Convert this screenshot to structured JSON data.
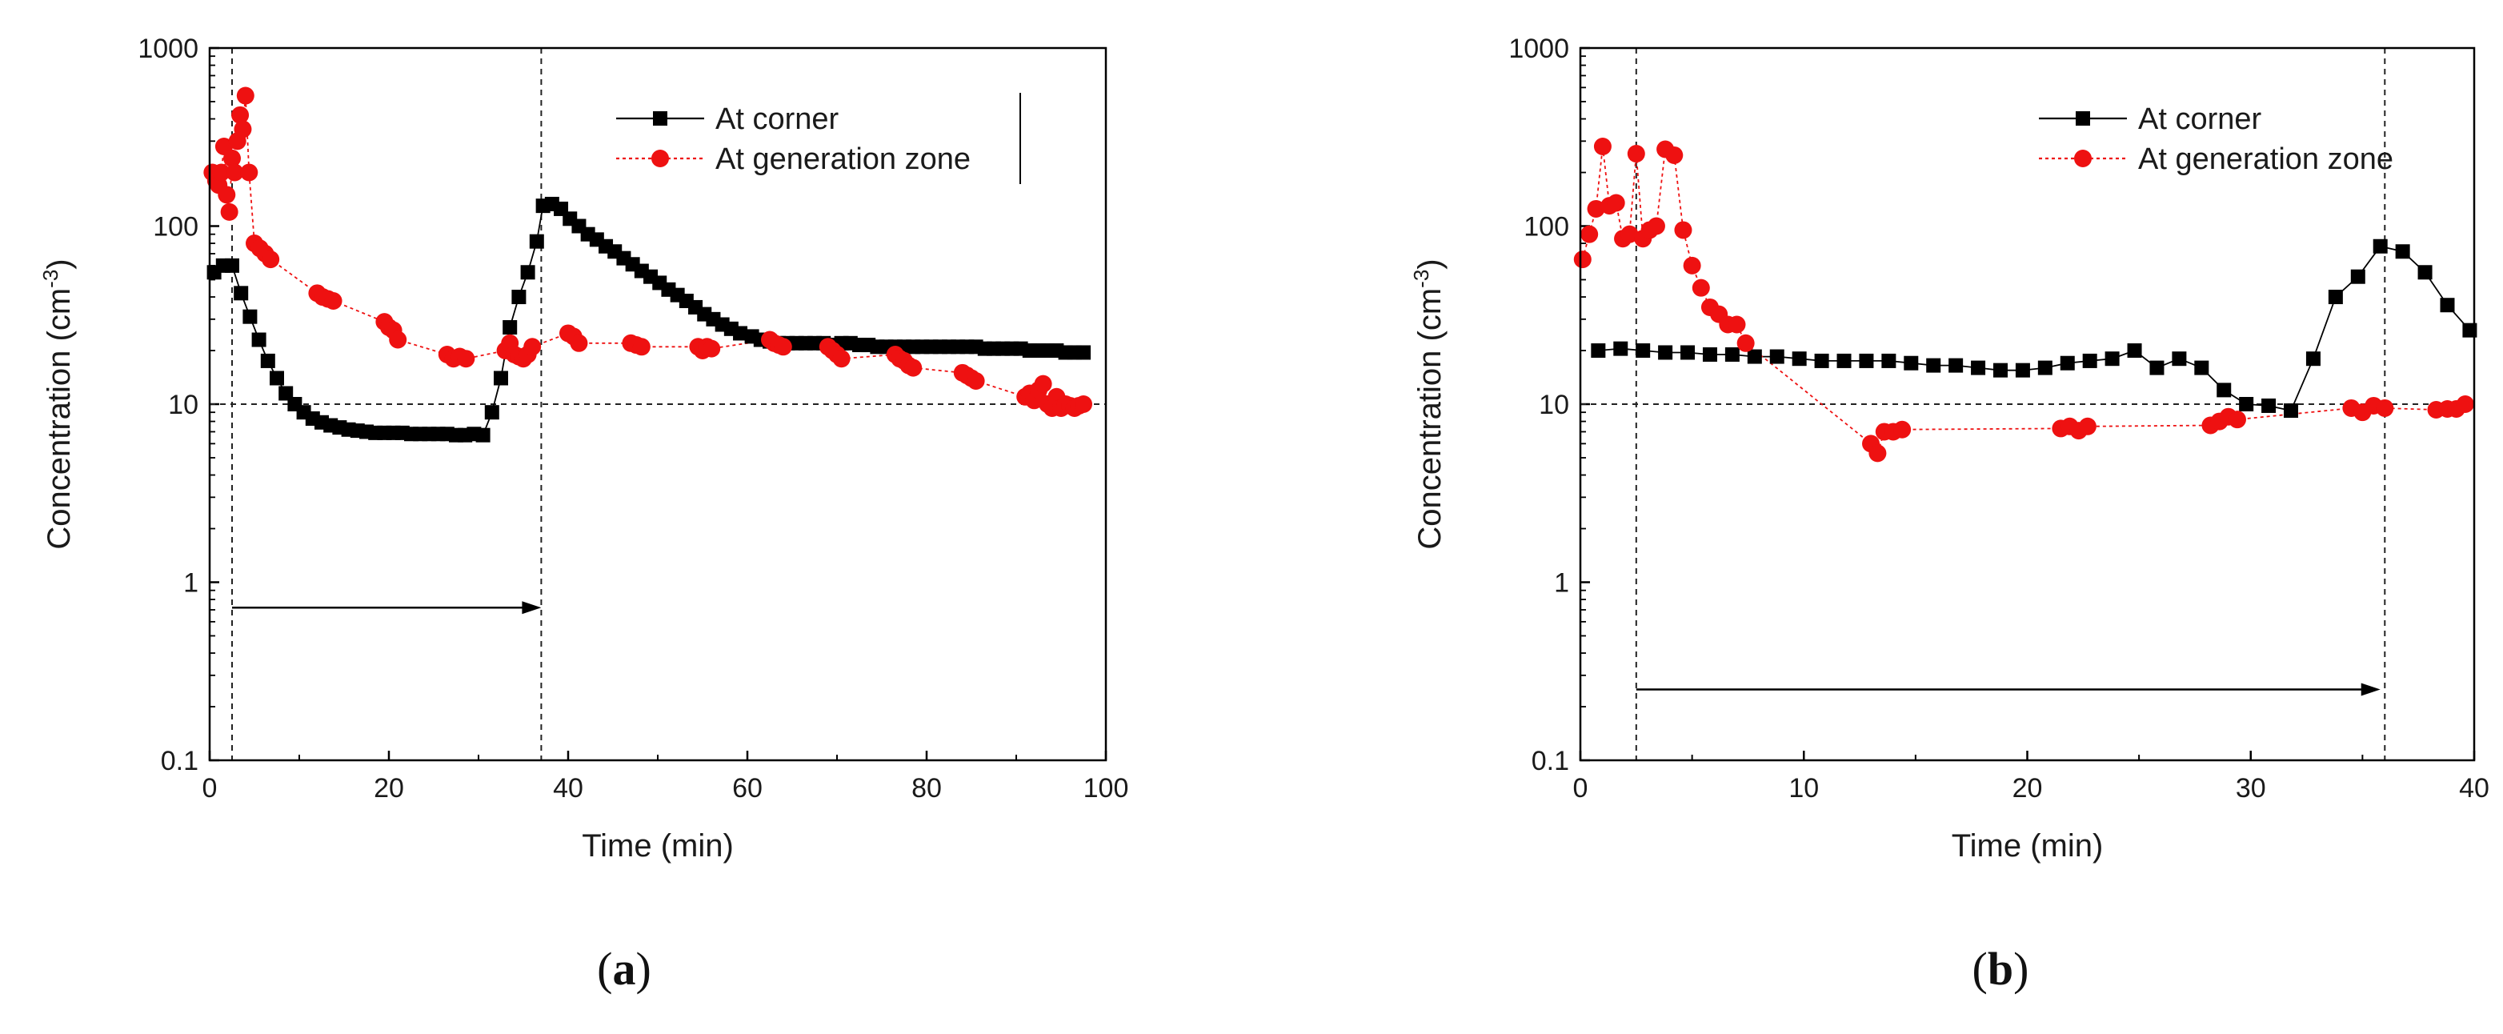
{
  "chart_data": [
    {
      "type": "scatter",
      "panel_label": {
        "open": "(",
        "letter": "a",
        "close": ")"
      },
      "xlabel": "Time (min)",
      "ylabel": "Concentration (cm",
      "ylabel_sup": "-3",
      "ylabel_close": ")",
      "y_scale": "log",
      "xlim": [
        0,
        100
      ],
      "ylim": [
        0.1,
        1000
      ],
      "x_ticks": [
        0,
        20,
        40,
        60,
        80,
        100
      ],
      "x_tick_labels": [
        "0",
        "20",
        "40",
        "60",
        "80",
        "100"
      ],
      "y_ticks": [
        0.1,
        1,
        10,
        100,
        1000
      ],
      "y_tick_labels": [
        "0.1",
        "1",
        "10",
        "100",
        "1000"
      ],
      "hline": 10,
      "vlines": [
        2.5,
        37
      ],
      "arrow": {
        "x_start": 2.5,
        "x_end": 37,
        "y": 0.72
      },
      "legend_position": "top-right",
      "series": [
        {
          "name": "At corner",
          "color": "#000000",
          "marker": "square",
          "points": [
            [
              0.5,
              55
            ],
            [
              1.5,
              60
            ],
            [
              2.5,
              60
            ],
            [
              3.5,
              42
            ],
            [
              4.5,
              31
            ],
            [
              5.5,
              23
            ],
            [
              6.5,
              17.5
            ],
            [
              7.5,
              14
            ],
            [
              8.5,
              11.5
            ],
            [
              9.5,
              10
            ],
            [
              10.5,
              9
            ],
            [
              11.5,
              8.3
            ],
            [
              12.5,
              7.9
            ],
            [
              13.5,
              7.6
            ],
            [
              14.5,
              7.4
            ],
            [
              15.5,
              7.2
            ],
            [
              16.5,
              7.1
            ],
            [
              17.5,
              7
            ],
            [
              18.5,
              6.9
            ],
            [
              19.5,
              6.9
            ],
            [
              20.5,
              6.9
            ],
            [
              21.5,
              6.9
            ],
            [
              22.5,
              6.8
            ],
            [
              23.5,
              6.8
            ],
            [
              24.5,
              6.8
            ],
            [
              25.5,
              6.8
            ],
            [
              26.5,
              6.8
            ],
            [
              27.5,
              6.7
            ],
            [
              28.5,
              6.7
            ],
            [
              29.5,
              6.8
            ],
            [
              30.5,
              6.7
            ],
            [
              31.5,
              9
            ],
            [
              32.5,
              14
            ],
            [
              33.5,
              27
            ],
            [
              34.5,
              40
            ],
            [
              35.5,
              55
            ],
            [
              36.5,
              82
            ],
            [
              37.2,
              130
            ],
            [
              38.2,
              133
            ],
            [
              39.2,
              125
            ],
            [
              40.2,
              110
            ],
            [
              41.2,
              100
            ],
            [
              42.2,
              90
            ],
            [
              43.2,
              84
            ],
            [
              44.2,
              77
            ],
            [
              45.2,
              72
            ],
            [
              46.2,
              66
            ],
            [
              47.2,
              61
            ],
            [
              48.2,
              56
            ],
            [
              49.2,
              52
            ],
            [
              50.2,
              48
            ],
            [
              51.2,
              44
            ],
            [
              52.2,
              41
            ],
            [
              53.2,
              38
            ],
            [
              54.2,
              35
            ],
            [
              55.2,
              32
            ],
            [
              56.2,
              30
            ],
            [
              57.2,
              28
            ],
            [
              58.2,
              26.5
            ],
            [
              59.2,
              25
            ],
            [
              60.5,
              24
            ],
            [
              61.5,
              23
            ],
            [
              62.5,
              22.5
            ],
            [
              63.5,
              22
            ],
            [
              64.5,
              22
            ],
            [
              65.5,
              22
            ],
            [
              66.5,
              22
            ],
            [
              67.5,
              22
            ],
            [
              68.5,
              22
            ],
            [
              69.5,
              21.5
            ],
            [
              70.5,
              22
            ],
            [
              71.5,
              22
            ],
            [
              72.5,
              21.5
            ],
            [
              73.5,
              21.5
            ],
            [
              74.5,
              21
            ],
            [
              75.5,
              21
            ],
            [
              76.5,
              21
            ],
            [
              77.5,
              21
            ],
            [
              78.5,
              21
            ],
            [
              79.5,
              21
            ],
            [
              80.5,
              21
            ],
            [
              81.5,
              21
            ],
            [
              82.5,
              21
            ],
            [
              83.5,
              21
            ],
            [
              84.5,
              21
            ],
            [
              85.5,
              21
            ],
            [
              86.5,
              20.5
            ],
            [
              87.5,
              20.5
            ],
            [
              88.5,
              20.5
            ],
            [
              89.5,
              20.5
            ],
            [
              90.5,
              20.5
            ],
            [
              91.5,
              20
            ],
            [
              92.5,
              20
            ],
            [
              93.5,
              20
            ],
            [
              94.5,
              20
            ],
            [
              95.5,
              19.5
            ],
            [
              96.5,
              19.5
            ],
            [
              97.5,
              19.5
            ]
          ]
        },
        {
          "name": "At generation zone",
          "color": "#ee1111",
          "marker": "circle",
          "points": [
            [
              0.3,
              200
            ],
            [
              0.7,
              180
            ],
            [
              1,
              170
            ],
            [
              1.3,
              200
            ],
            [
              1.6,
              280
            ],
            [
              1.9,
              150
            ],
            [
              2.2,
              120
            ],
            [
              2.5,
              240
            ],
            [
              2.8,
              200
            ],
            [
              3.1,
              300
            ],
            [
              3.4,
              420
            ],
            [
              3.7,
              350
            ],
            [
              4,
              540
            ],
            [
              4.4,
              200
            ],
            [
              5,
              80
            ],
            [
              5.6,
              75
            ],
            [
              6.2,
              70
            ],
            [
              6.8,
              65
            ],
            [
              12,
              42
            ],
            [
              12.6,
              40
            ],
            [
              13.2,
              39
            ],
            [
              13.8,
              38
            ],
            [
              19.5,
              29
            ],
            [
              20,
              27
            ],
            [
              20.5,
              26
            ],
            [
              21,
              23
            ],
            [
              26.5,
              19
            ],
            [
              27.2,
              18
            ],
            [
              27.9,
              18.5
            ],
            [
              28.6,
              18
            ],
            [
              33,
              20
            ],
            [
              33.5,
              22
            ],
            [
              34,
              19
            ],
            [
              34.5,
              18.5
            ],
            [
              35,
              18
            ],
            [
              35.5,
              19
            ],
            [
              36,
              21
            ],
            [
              40,
              25
            ],
            [
              40.6,
              24
            ],
            [
              41.2,
              22
            ],
            [
              47,
              22
            ],
            [
              47.6,
              21.5
            ],
            [
              48.2,
              21
            ],
            [
              54.5,
              21
            ],
            [
              55,
              20
            ],
            [
              55.5,
              21
            ],
            [
              56,
              20.5
            ],
            [
              62.5,
              23
            ],
            [
              63,
              22
            ],
            [
              63.5,
              21.5
            ],
            [
              64,
              21
            ],
            [
              69,
              21
            ],
            [
              69.5,
              20
            ],
            [
              70,
              19
            ],
            [
              70.5,
              18
            ],
            [
              76.5,
              19
            ],
            [
              77,
              18
            ],
            [
              77.5,
              17.5
            ],
            [
              78,
              16.5
            ],
            [
              78.5,
              16
            ],
            [
              84,
              15
            ],
            [
              84.5,
              14.5
            ],
            [
              85,
              14
            ],
            [
              85.5,
              13.5
            ],
            [
              91,
              11
            ],
            [
              91.5,
              11.5
            ],
            [
              92,
              10.5
            ],
            [
              92.5,
              12
            ],
            [
              93,
              13
            ],
            [
              93.5,
              10
            ],
            [
              94,
              9.5
            ],
            [
              94.5,
              11
            ],
            [
              95,
              9.5
            ],
            [
              95.5,
              10
            ],
            [
              96,
              9.8
            ],
            [
              96.5,
              9.5
            ],
            [
              97,
              9.8
            ],
            [
              97.5,
              10
            ]
          ]
        }
      ]
    },
    {
      "type": "scatter",
      "panel_label": {
        "open": "(",
        "letter": "b",
        "close": ")"
      },
      "xlabel": "Time (min)",
      "ylabel": "Concentration (cm",
      "ylabel_sup": "-3",
      "ylabel_close": ")",
      "y_scale": "log",
      "xlim": [
        0,
        40
      ],
      "ylim": [
        0.1,
        1000
      ],
      "x_ticks": [
        0,
        10,
        20,
        30,
        40
      ],
      "x_tick_labels": [
        "0",
        "10",
        "20",
        "30",
        "40"
      ],
      "y_ticks": [
        0.1,
        1,
        10,
        100,
        1000
      ],
      "y_tick_labels": [
        "0.1",
        "1",
        "10",
        "100",
        "1000"
      ],
      "hline": 10,
      "vlines": [
        2.5,
        36
      ],
      "arrow": {
        "x_start": 2.5,
        "x_end": 35.8,
        "y": 0.25
      },
      "legend_position": "top-right",
      "series": [
        {
          "name": "At corner",
          "color": "#000000",
          "marker": "square",
          "points": [
            [
              0.8,
              20
            ],
            [
              1.8,
              20.5
            ],
            [
              2.8,
              20
            ],
            [
              3.8,
              19.5
            ],
            [
              4.8,
              19.5
            ],
            [
              5.8,
              19
            ],
            [
              6.8,
              19
            ],
            [
              7.8,
              18.5
            ],
            [
              8.8,
              18.5
            ],
            [
              9.8,
              18
            ],
            [
              10.8,
              17.5
            ],
            [
              11.8,
              17.5
            ],
            [
              12.8,
              17.5
            ],
            [
              13.8,
              17.5
            ],
            [
              14.8,
              17
            ],
            [
              15.8,
              16.5
            ],
            [
              16.8,
              16.5
            ],
            [
              17.8,
              16
            ],
            [
              18.8,
              15.5
            ],
            [
              19.8,
              15.5
            ],
            [
              20.8,
              16
            ],
            [
              21.8,
              17
            ],
            [
              22.8,
              17.5
            ],
            [
              23.8,
              18
            ],
            [
              24.8,
              20
            ],
            [
              25.8,
              16
            ],
            [
              26.8,
              18
            ],
            [
              27.8,
              16
            ],
            [
              28.8,
              12
            ],
            [
              29.8,
              10
            ],
            [
              30.8,
              9.8
            ],
            [
              31.8,
              9.2
            ],
            [
              32.8,
              18
            ],
            [
              33.8,
              40
            ],
            [
              34.8,
              52
            ],
            [
              35.8,
              77
            ],
            [
              36.8,
              72
            ],
            [
              37.8,
              55
            ],
            [
              38.8,
              36
            ],
            [
              39.8,
              26
            ]
          ]
        },
        {
          "name": "At generation zone",
          "color": "#ee1111",
          "marker": "circle",
          "points": [
            [
              0.1,
              65
            ],
            [
              0.4,
              90
            ],
            [
              0.7,
              125
            ],
            [
              1,
              280
            ],
            [
              1.3,
              130
            ],
            [
              1.6,
              135
            ],
            [
              1.9,
              85
            ],
            [
              2.2,
              90
            ],
            [
              2.5,
              255
            ],
            [
              2.8,
              85
            ],
            [
              3.1,
              95
            ],
            [
              3.4,
              100
            ],
            [
              3.8,
              270
            ],
            [
              4.2,
              250
            ],
            [
              4.6,
              95
            ],
            [
              5,
              60
            ],
            [
              5.4,
              45
            ],
            [
              5.8,
              35
            ],
            [
              6.2,
              32
            ],
            [
              6.6,
              28
            ],
            [
              7,
              28
            ],
            [
              7.4,
              22
            ],
            [
              13,
              6
            ],
            [
              13.3,
              5.3
            ],
            [
              13.6,
              7
            ],
            [
              14,
              7
            ],
            [
              14.4,
              7.2
            ],
            [
              21.5,
              7.3
            ],
            [
              21.9,
              7.5
            ],
            [
              22.3,
              7.1
            ],
            [
              22.7,
              7.5
            ],
            [
              28.2,
              7.6
            ],
            [
              28.6,
              8
            ],
            [
              29,
              8.5
            ],
            [
              29.4,
              8.2
            ],
            [
              34.5,
              9.5
            ],
            [
              35,
              9
            ],
            [
              35.5,
              9.8
            ],
            [
              36,
              9.5
            ],
            [
              38.3,
              9.3
            ],
            [
              38.8,
              9.4
            ],
            [
              39.2,
              9.4
            ],
            [
              39.6,
              10
            ]
          ]
        }
      ]
    }
  ]
}
